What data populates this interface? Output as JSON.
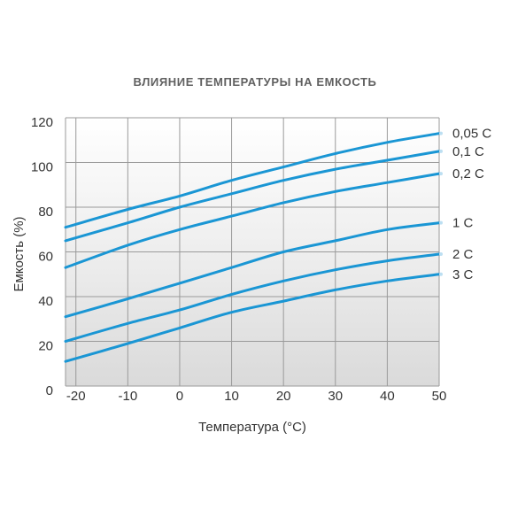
{
  "chart_data": {
    "type": "line",
    "title": "ВЛИЯНИЕ ТЕМПЕРАТУРЫ НА ЕМКОСТЬ",
    "xlabel": "Температура (°C)",
    "ylabel": "Емкость (%)",
    "xlim": [
      -22,
      50
    ],
    "ylim": [
      0,
      120
    ],
    "xticks": [
      -20,
      -10,
      0,
      10,
      20,
      30,
      40,
      50
    ],
    "yticks": [
      0,
      20,
      40,
      60,
      80,
      100,
      120
    ],
    "grid": true,
    "legend": "right (labels at line ends)",
    "line_color": "#1a96d4",
    "plot_background": "#e2e2e2",
    "series": [
      {
        "name": "0,05 C",
        "points": [
          [
            -22,
            71
          ],
          [
            -10,
            79
          ],
          [
            0,
            85
          ],
          [
            10,
            92
          ],
          [
            20,
            98
          ],
          [
            30,
            104
          ],
          [
            40,
            109
          ],
          [
            50,
            113
          ]
        ]
      },
      {
        "name": "0,1 C",
        "points": [
          [
            -22,
            65
          ],
          [
            -10,
            73
          ],
          [
            0,
            80
          ],
          [
            10,
            86
          ],
          [
            20,
            92
          ],
          [
            30,
            97
          ],
          [
            40,
            101
          ],
          [
            50,
            105
          ]
        ]
      },
      {
        "name": "0,2 C",
        "points": [
          [
            -22,
            53
          ],
          [
            -10,
            63
          ],
          [
            0,
            70
          ],
          [
            10,
            76
          ],
          [
            20,
            82
          ],
          [
            30,
            87
          ],
          [
            40,
            91
          ],
          [
            50,
            95
          ]
        ]
      },
      {
        "name": "1 C",
        "points": [
          [
            -22,
            31
          ],
          [
            -10,
            39
          ],
          [
            0,
            46
          ],
          [
            10,
            53
          ],
          [
            20,
            60
          ],
          [
            30,
            65
          ],
          [
            40,
            70
          ],
          [
            50,
            73
          ]
        ]
      },
      {
        "name": "2 C",
        "points": [
          [
            -22,
            20
          ],
          [
            -10,
            28
          ],
          [
            0,
            34
          ],
          [
            10,
            41
          ],
          [
            20,
            47
          ],
          [
            30,
            52
          ],
          [
            40,
            56
          ],
          [
            50,
            59
          ]
        ]
      },
      {
        "name": "3 C",
        "points": [
          [
            -22,
            11
          ],
          [
            -10,
            19
          ],
          [
            0,
            26
          ],
          [
            10,
            33
          ],
          [
            20,
            38
          ],
          [
            30,
            43
          ],
          [
            40,
            47
          ],
          [
            50,
            50
          ]
        ]
      }
    ]
  }
}
